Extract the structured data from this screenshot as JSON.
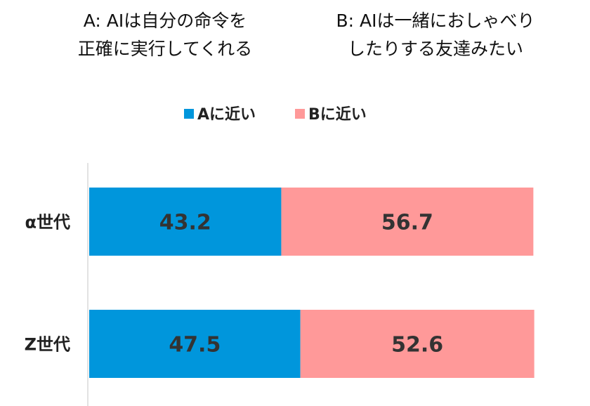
{
  "options": {
    "a_text": "A: AIは自分の命令を\n正確に実行してくれる",
    "b_text": "B: AIは一緒におしゃべり\nしたりする友達みたい"
  },
  "chart_data": {
    "type": "bar",
    "orientation": "horizontal",
    "stacked": true,
    "categories": [
      "α世代",
      "Z世代"
    ],
    "series": [
      {
        "name": "Aに近い",
        "values": [
          43.2,
          47.5
        ],
        "color": "#0096DC"
      },
      {
        "name": "Bに近い",
        "values": [
          56.7,
          52.6
        ],
        "color": "#FF9999"
      }
    ],
    "xlim": [
      0,
      100
    ],
    "legend": "top-center",
    "grid": false
  }
}
